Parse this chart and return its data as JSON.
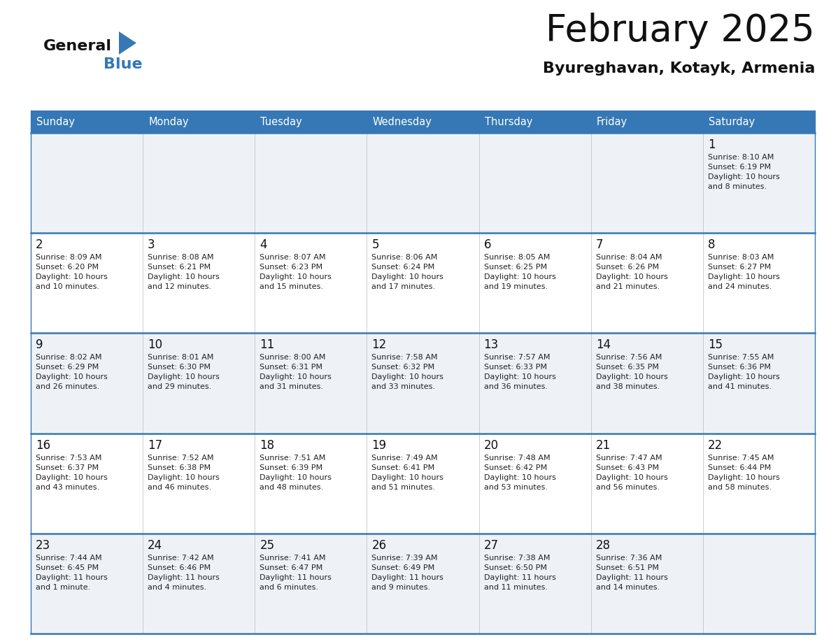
{
  "title": "February 2025",
  "subtitle": "Byureghavan, Kotayk, Armenia",
  "header_bg": "#3578b5",
  "header_text": "#ffffff",
  "cell_bg_odd": "#eef2f7",
  "cell_bg_even": "#ffffff",
  "border_color": "#3578b5",
  "text_color": "#222222",
  "day_headers": [
    "Sunday",
    "Monday",
    "Tuesday",
    "Wednesday",
    "Thursday",
    "Friday",
    "Saturday"
  ],
  "calendar_data": [
    [
      null,
      null,
      null,
      null,
      null,
      null,
      {
        "day": "1",
        "sunrise": "Sunrise: 8:10 AM",
        "sunset": "Sunset: 6:19 PM",
        "daylight1": "Daylight: 10 hours",
        "daylight2": "and 8 minutes."
      }
    ],
    [
      {
        "day": "2",
        "sunrise": "Sunrise: 8:09 AM",
        "sunset": "Sunset: 6:20 PM",
        "daylight1": "Daylight: 10 hours",
        "daylight2": "and 10 minutes."
      },
      {
        "day": "3",
        "sunrise": "Sunrise: 8:08 AM",
        "sunset": "Sunset: 6:21 PM",
        "daylight1": "Daylight: 10 hours",
        "daylight2": "and 12 minutes."
      },
      {
        "day": "4",
        "sunrise": "Sunrise: 8:07 AM",
        "sunset": "Sunset: 6:23 PM",
        "daylight1": "Daylight: 10 hours",
        "daylight2": "and 15 minutes."
      },
      {
        "day": "5",
        "sunrise": "Sunrise: 8:06 AM",
        "sunset": "Sunset: 6:24 PM",
        "daylight1": "Daylight: 10 hours",
        "daylight2": "and 17 minutes."
      },
      {
        "day": "6",
        "sunrise": "Sunrise: 8:05 AM",
        "sunset": "Sunset: 6:25 PM",
        "daylight1": "Daylight: 10 hours",
        "daylight2": "and 19 minutes."
      },
      {
        "day": "7",
        "sunrise": "Sunrise: 8:04 AM",
        "sunset": "Sunset: 6:26 PM",
        "daylight1": "Daylight: 10 hours",
        "daylight2": "and 21 minutes."
      },
      {
        "day": "8",
        "sunrise": "Sunrise: 8:03 AM",
        "sunset": "Sunset: 6:27 PM",
        "daylight1": "Daylight: 10 hours",
        "daylight2": "and 24 minutes."
      }
    ],
    [
      {
        "day": "9",
        "sunrise": "Sunrise: 8:02 AM",
        "sunset": "Sunset: 6:29 PM",
        "daylight1": "Daylight: 10 hours",
        "daylight2": "and 26 minutes."
      },
      {
        "day": "10",
        "sunrise": "Sunrise: 8:01 AM",
        "sunset": "Sunset: 6:30 PM",
        "daylight1": "Daylight: 10 hours",
        "daylight2": "and 29 minutes."
      },
      {
        "day": "11",
        "sunrise": "Sunrise: 8:00 AM",
        "sunset": "Sunset: 6:31 PM",
        "daylight1": "Daylight: 10 hours",
        "daylight2": "and 31 minutes."
      },
      {
        "day": "12",
        "sunrise": "Sunrise: 7:58 AM",
        "sunset": "Sunset: 6:32 PM",
        "daylight1": "Daylight: 10 hours",
        "daylight2": "and 33 minutes."
      },
      {
        "day": "13",
        "sunrise": "Sunrise: 7:57 AM",
        "sunset": "Sunset: 6:33 PM",
        "daylight1": "Daylight: 10 hours",
        "daylight2": "and 36 minutes."
      },
      {
        "day": "14",
        "sunrise": "Sunrise: 7:56 AM",
        "sunset": "Sunset: 6:35 PM",
        "daylight1": "Daylight: 10 hours",
        "daylight2": "and 38 minutes."
      },
      {
        "day": "15",
        "sunrise": "Sunrise: 7:55 AM",
        "sunset": "Sunset: 6:36 PM",
        "daylight1": "Daylight: 10 hours",
        "daylight2": "and 41 minutes."
      }
    ],
    [
      {
        "day": "16",
        "sunrise": "Sunrise: 7:53 AM",
        "sunset": "Sunset: 6:37 PM",
        "daylight1": "Daylight: 10 hours",
        "daylight2": "and 43 minutes."
      },
      {
        "day": "17",
        "sunrise": "Sunrise: 7:52 AM",
        "sunset": "Sunset: 6:38 PM",
        "daylight1": "Daylight: 10 hours",
        "daylight2": "and 46 minutes."
      },
      {
        "day": "18",
        "sunrise": "Sunrise: 7:51 AM",
        "sunset": "Sunset: 6:39 PM",
        "daylight1": "Daylight: 10 hours",
        "daylight2": "and 48 minutes."
      },
      {
        "day": "19",
        "sunrise": "Sunrise: 7:49 AM",
        "sunset": "Sunset: 6:41 PM",
        "daylight1": "Daylight: 10 hours",
        "daylight2": "and 51 minutes."
      },
      {
        "day": "20",
        "sunrise": "Sunrise: 7:48 AM",
        "sunset": "Sunset: 6:42 PM",
        "daylight1": "Daylight: 10 hours",
        "daylight2": "and 53 minutes."
      },
      {
        "day": "21",
        "sunrise": "Sunrise: 7:47 AM",
        "sunset": "Sunset: 6:43 PM",
        "daylight1": "Daylight: 10 hours",
        "daylight2": "and 56 minutes."
      },
      {
        "day": "22",
        "sunrise": "Sunrise: 7:45 AM",
        "sunset": "Sunset: 6:44 PM",
        "daylight1": "Daylight: 10 hours",
        "daylight2": "and 58 minutes."
      }
    ],
    [
      {
        "day": "23",
        "sunrise": "Sunrise: 7:44 AM",
        "sunset": "Sunset: 6:45 PM",
        "daylight1": "Daylight: 11 hours",
        "daylight2": "and 1 minute."
      },
      {
        "day": "24",
        "sunrise": "Sunrise: 7:42 AM",
        "sunset": "Sunset: 6:46 PM",
        "daylight1": "Daylight: 11 hours",
        "daylight2": "and 4 minutes."
      },
      {
        "day": "25",
        "sunrise": "Sunrise: 7:41 AM",
        "sunset": "Sunset: 6:47 PM",
        "daylight1": "Daylight: 11 hours",
        "daylight2": "and 6 minutes."
      },
      {
        "day": "26",
        "sunrise": "Sunrise: 7:39 AM",
        "sunset": "Sunset: 6:49 PM",
        "daylight1": "Daylight: 11 hours",
        "daylight2": "and 9 minutes."
      },
      {
        "day": "27",
        "sunrise": "Sunrise: 7:38 AM",
        "sunset": "Sunset: 6:50 PM",
        "daylight1": "Daylight: 11 hours",
        "daylight2": "and 11 minutes."
      },
      {
        "day": "28",
        "sunrise": "Sunrise: 7:36 AM",
        "sunset": "Sunset: 6:51 PM",
        "daylight1": "Daylight: 11 hours",
        "daylight2": "and 14 minutes."
      },
      null
    ]
  ],
  "logo_color_general": "#111111",
  "logo_color_blue": "#3578b5",
  "logo_triangle_color": "#3578b5"
}
